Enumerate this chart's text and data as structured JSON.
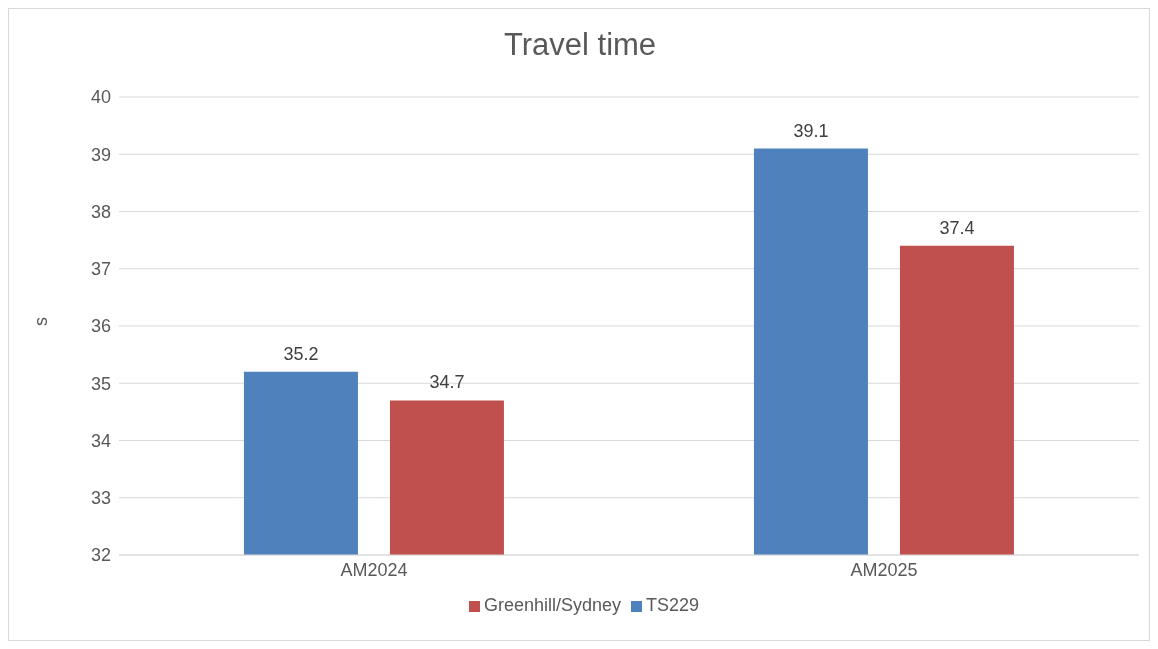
{
  "chart_data": {
    "type": "bar",
    "title": "Travel time",
    "ylabel": "s",
    "categories": [
      "AM2024",
      "AM2025"
    ],
    "series": [
      {
        "name": "TS229",
        "color": "#4f81bd",
        "values": [
          35.2,
          39.1
        ]
      },
      {
        "name": "Greenhill/Sydney",
        "color": "#c0504d",
        "values": [
          34.7,
          37.4
        ]
      }
    ],
    "ylim": [
      32,
      40
    ],
    "yticks": [
      32,
      33,
      34,
      35,
      36,
      37,
      38,
      39,
      40
    ],
    "grid": "y",
    "legend": "bottom",
    "data_labels": true
  }
}
